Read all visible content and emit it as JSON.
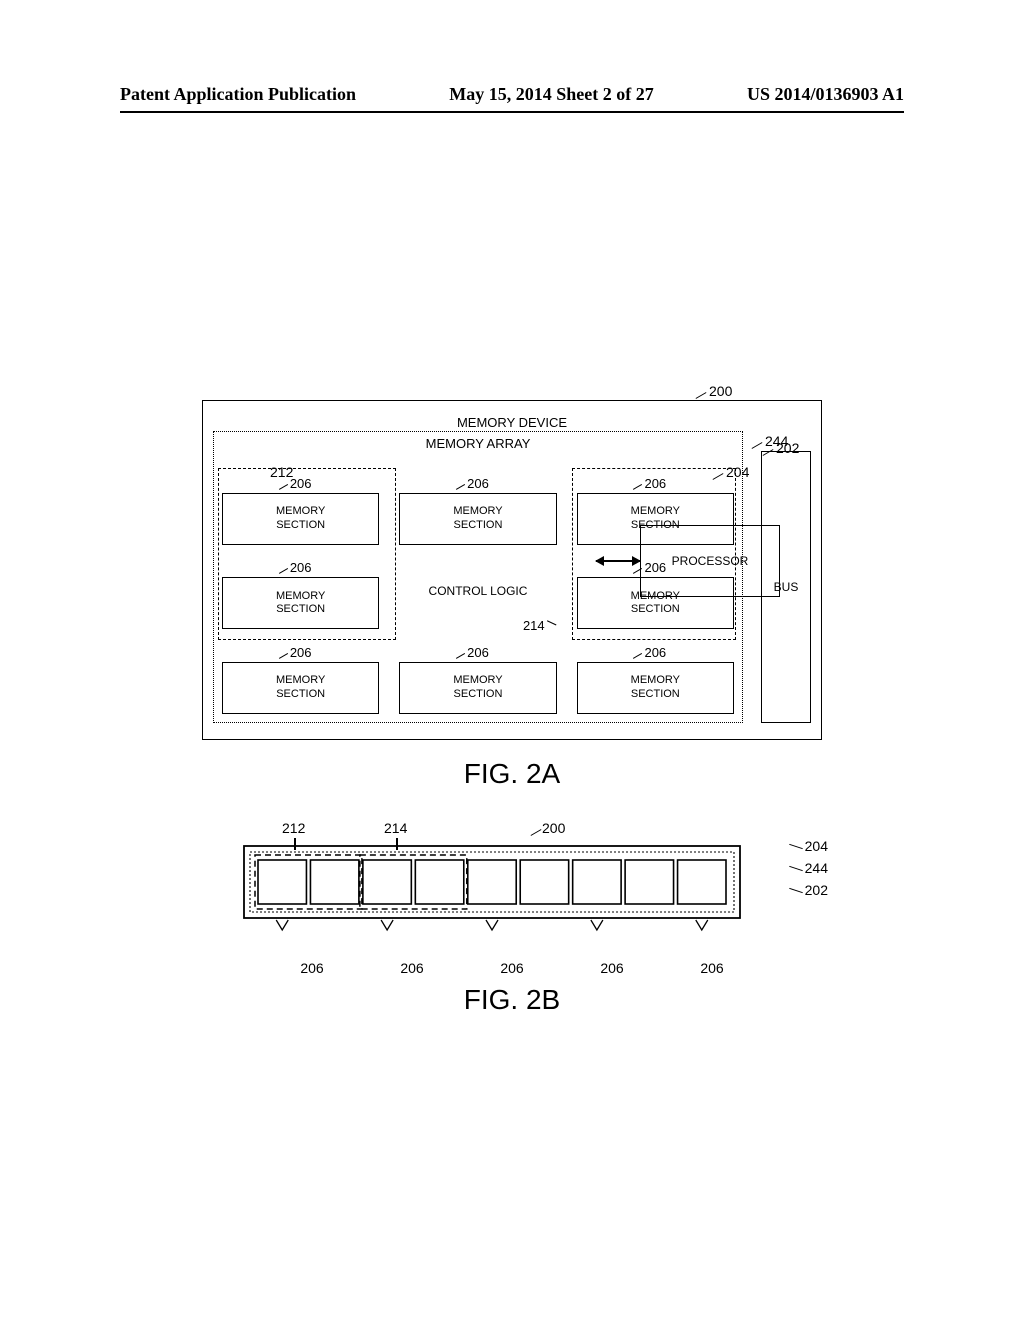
{
  "header": {
    "left": "Patent Application Publication",
    "center": "May 15, 2014  Sheet 2 of 27",
    "right": "US 2014/0136903 A1"
  },
  "fig2a": {
    "caption": "FIG. 2A",
    "device_label": "MEMORY DEVICE",
    "array_label": "MEMORY ARRAY",
    "bus_label": "BUS",
    "processor_label": "PROCESSOR",
    "control_logic_label": "CONTROL LOGIC",
    "memory_section_label": "MEMORY\nSECTION",
    "refs": {
      "device": "200",
      "array": "202",
      "array_inner": "204",
      "bus": "244",
      "group_left": "212",
      "control_logic": "214",
      "section": "206"
    },
    "grid": [
      [
        "section",
        "section",
        "section"
      ],
      [
        "section",
        "control",
        "section"
      ],
      [
        "section",
        "section",
        "section"
      ]
    ],
    "colors": {
      "line": "#000000",
      "bg": "#ffffff"
    }
  },
  "fig2b": {
    "caption": "FIG. 2B",
    "top_refs": {
      "g212": "212",
      "g214": "214",
      "dev": "200"
    },
    "right_refs": {
      "r204": "204",
      "r244": "244",
      "r202": "202"
    },
    "bottom_ref": "206",
    "block_count": 9,
    "group1_span": [
      0,
      1
    ],
    "group2_span": [
      2,
      3
    ],
    "colors": {
      "line": "#000000",
      "bg": "#ffffff"
    }
  }
}
